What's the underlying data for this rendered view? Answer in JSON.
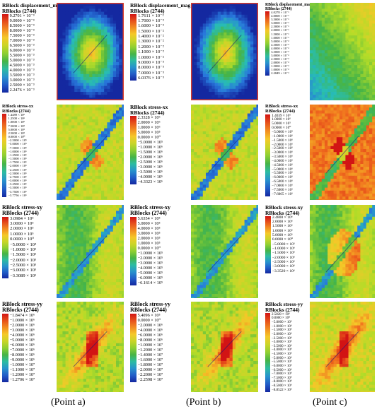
{
  "captions": [
    "(Point a)",
    "(Point b)",
    "(Point c)"
  ],
  "rows": [
    {
      "legends": [
        {
          "title": [
            "RBlock displacement_mag",
            "RBlocks (2744)"
          ],
          "labels": [
            "9.2701 × 10⁻³",
            "9.0000 × 10⁻³",
            "8.5000 × 10⁻³",
            "8.0000 × 10⁻³",
            "7.5000 × 10⁻³",
            "7.0000 × 10⁻³",
            "6.5000 × 10⁻³",
            "6.0000 × 10⁻³",
            "5.5000 × 10⁻³",
            "5.0000 × 10⁻³",
            "4.5000 × 10⁻³",
            "4.0000 × 10⁻³",
            "3.5000 × 10⁻³",
            "3.0000 × 10⁻³",
            "2.5000 × 10⁻³",
            "2.2476 × 10⁻³"
          ]
        },
        {
          "title": [
            "RBlock displacement_mag",
            "RBlocks (2744)"
          ],
          "labels": [
            "1.7611 × 10⁻²",
            "1.7000 × 10⁻²",
            "1.6000 × 10⁻²",
            "1.5000 × 10⁻²",
            "1.4000 × 10⁻²",
            "1.3000 × 10⁻²",
            "1.2000 × 10⁻²",
            "1.1000 × 10⁻²",
            "1.0000 × 10⁻²",
            "9.0000 × 10⁻³",
            "8.0000 × 10⁻³",
            "7.0000 × 10⁻³",
            "6.0376 × 10⁻³"
          ]
        },
        {
          "title": [
            "RBlock displacement_mag",
            "RBlocks (2744)"
          ],
          "labels": [
            "4.0278 × 10⁻¹",
            "4.0000 × 10⁻¹",
            "3.5000 × 10⁻¹",
            "3.0000 × 10⁻¹",
            "2.5000 × 10⁻¹",
            "2.0000 × 10⁻¹",
            "1.5000 × 10⁻¹",
            "1.0000 × 10⁻¹",
            "5.0000 × 10⁻²",
            "4.5000 × 10⁻²",
            "4.0000 × 10⁻²",
            "3.5000 × 10⁻²",
            "3.0000 × 10⁻²",
            "2.5000 × 10⁻²",
            "2.0000 × 10⁻²",
            "1.5000 × 10⁻²",
            "1.0000 × 10⁻²",
            "2.2849 × 10⁻³"
          ]
        }
      ]
    },
    {
      "legends": [
        {
          "title": [
            "RBlock stress-xx",
            "RBlocks (2744)"
          ],
          "labels": [
            "1.4489 × 10⁶",
            "1.2500 × 10⁶",
            "1.0000 × 10⁶",
            "7.5000 × 10⁵",
            "5.0000 × 10⁵",
            "2.5000 × 10⁵",
            "0.0000 × 10⁰",
            "−2.5000 × 10⁵",
            "−5.0000 × 10⁵",
            "−7.5000 × 10⁵",
            "−1.0000 × 10⁶",
            "−1.2500 × 10⁶",
            "−1.5000 × 10⁶",
            "−1.7500 × 10⁶",
            "−2.0000 × 10⁶",
            "−2.2500 × 10⁶",
            "−2.5000 × 10⁶",
            "−2.7500 × 10⁶",
            "−3.0000 × 10⁶",
            "−3.2500 × 10⁶",
            "−3.5000 × 10⁶",
            "−3.7500 × 10⁶",
            "−3.7756 × 10⁶"
          ]
        },
        {
          "title": [
            "RBlock stress-xx",
            "RBlocks (2744)"
          ],
          "labels": [
            "2.3328 × 10⁶",
            "2.0000 × 10⁶",
            "1.0000 × 10⁶",
            "5.0000 × 10⁵",
            "0.0000 × 10⁰",
            "−5.0000 × 10⁵",
            "−1.0000 × 10⁶",
            "−1.5000 × 10⁶",
            "−2.0000 × 10⁶",
            "−2.5000 × 10⁶",
            "−3.0000 × 10⁶",
            "−3.5000 × 10⁶",
            "−4.0000 × 10⁶",
            "−4.3323 × 10⁶"
          ]
        },
        {
          "title": [
            "RBlock stress-xx",
            "RBlocks (2744)"
          ],
          "labels": [
            "1.4039 × 10⁶",
            "1.0000 × 10⁶",
            "5.0000 × 10⁵",
            "0.0000 × 10⁰",
            "−5.0000 × 10⁵",
            "−1.0000 × 10⁶",
            "−1.5000 × 10⁶",
            "−2.0000 × 10⁶",
            "−2.5000 × 10⁶",
            "−3.0000 × 10⁶",
            "−3.5000 × 10⁶",
            "−4.0000 × 10⁶",
            "−4.5000 × 10⁶",
            "−5.0000 × 10⁶",
            "−5.5000 × 10⁶",
            "−6.0000 × 10⁶",
            "−6.5000 × 10⁶",
            "−7.0000 × 10⁶",
            "−7.5000 × 10⁶",
            "−7.6065 × 10⁶"
          ]
        }
      ]
    },
    {
      "legends": [
        {
          "title": [
            "RBlock stress-xy",
            "RBlocks (2744)"
          ],
          "labels": [
            "3.0984 × 10⁵",
            "3.0000 × 10⁵",
            "2.0000 × 10⁵",
            "1.0000 × 10⁵",
            "0.0000 × 10⁰",
            "−5.0000 × 10⁴",
            "−1.0000 × 10⁵",
            "−1.5000 × 10⁵",
            "−2.0000 × 10⁵",
            "−2.5000 × 10⁵",
            "−3.0000 × 10⁵",
            "−3.3089 × 10⁵"
          ]
        },
        {
          "title": [
            "RBlock stress-xy",
            "RBlocks (2744)"
          ],
          "labels": [
            "5.6354 × 10⁵",
            "5.0000 × 10⁵",
            "4.0000 × 10⁵",
            "3.0000 × 10⁵",
            "2.0000 × 10⁵",
            "1.0000 × 10⁵",
            "0.0000 × 10⁰",
            "−1.0000 × 10⁵",
            "−2.0000 × 10⁵",
            "−3.0000 × 10⁵",
            "−4.0000 × 10⁵",
            "−5.0000 × 10⁵",
            "−6.0000 × 10⁵",
            "−6.1614 × 10⁵"
          ]
        },
        {
          "title": [
            "RBlock stress-xy",
            "RBlocks (2744)"
          ],
          "labels": [
            "2.4800 × 10⁶",
            "2.0000 × 10⁶",
            "1.5000 × 10⁶",
            "1.0000 × 10⁶",
            "5.0000 × 10⁵",
            "0.0000 × 10⁰",
            "−5.0000 × 10⁵",
            "−1.0000 × 10⁶",
            "−1.5000 × 10⁶",
            "−2.0000 × 10⁶",
            "−2.5000 × 10⁶",
            "−3.0000 × 10⁶",
            "−3.3520 × 10⁶"
          ]
        }
      ]
    },
    {
      "legends": [
        {
          "title": [
            "RBlock stress-yy",
            "RBlocks (2744)"
          ],
          "labels": [
            "−1.8474 × 10⁶",
            "−1.0000 × 10⁶",
            "−2.0000 × 10⁶",
            "−3.0000 × 10⁶",
            "−4.0000 × 10⁶",
            "−5.0000 × 10⁶",
            "−6.0000 × 10⁶",
            "−7.0000 × 10⁶",
            "−8.0000 × 10⁶",
            "−9.0000 × 10⁶",
            "−1.0000 × 10⁷",
            "−1.1000 × 10⁷",
            "−1.2000 × 10⁷",
            "−1.2706 × 10⁷"
          ]
        },
        {
          "title": [
            "RBlock stress-yy",
            "RBlocks (2744)"
          ],
          "labels": [
            "5.4096 × 10⁵",
            "0.0000 × 10⁰",
            "−2.0000 × 10⁶",
            "−4.0000 × 10⁶",
            "−6.0000 × 10⁶",
            "−8.0000 × 10⁶",
            "−1.0000 × 10⁷",
            "−1.2000 × 10⁷",
            "−1.4000 × 10⁷",
            "−1.6000 × 10⁷",
            "−1.8000 × 10⁷",
            "−2.0000 × 10⁷",
            "−2.2000 × 10⁷",
            "−2.2598 × 10⁷"
          ]
        },
        {
          "title": [
            "RBlock stress-yy",
            "RBlocks (2744)"
          ],
          "labels": [
            "2.5828 × 10⁶",
            "0.0000 × 10⁰",
            "−5.0000 × 10⁵",
            "−1.0000 × 10⁶",
            "−1.5000 × 10⁶",
            "−2.0000 × 10⁶",
            "−2.5000 × 10⁶",
            "−3.0000 × 10⁶",
            "−3.5000 × 10⁶",
            "−4.0000 × 10⁶",
            "−4.5000 × 10⁶",
            "−5.0000 × 10⁶",
            "−5.5000 × 10⁶",
            "−6.0000 × 10⁶",
            "−6.5000 × 10⁶",
            "−7.0000 × 10⁶",
            "−7.5000 × 10⁶",
            "−8.0000 × 10⁶",
            "−8.5000 × 10⁶",
            "−8.8522 × 10⁶"
          ]
        }
      ]
    }
  ]
}
